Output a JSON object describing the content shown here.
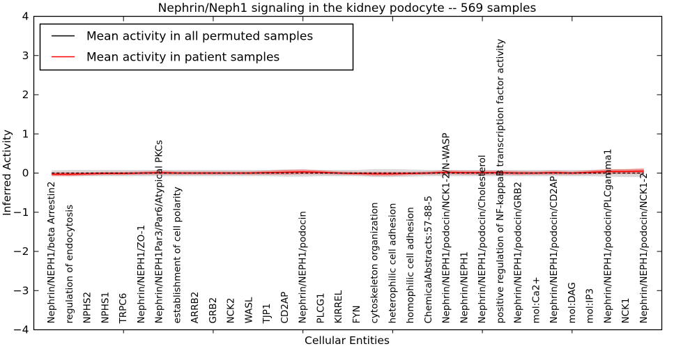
{
  "chart_data": {
    "type": "line",
    "title": "Nephrin/Neph1 signaling in the kidney podocyte -- 569 samples",
    "xlabel": "Cellular Entities",
    "ylabel": "Inferred Activity",
    "ylim": [
      -4,
      4
    ],
    "xlim": [
      0,
      35
    ],
    "yticks": [
      -4,
      -3,
      -2,
      -1,
      0,
      1,
      2,
      3,
      4
    ],
    "xticks_major": [
      5,
      10,
      15,
      20,
      25,
      30
    ],
    "grid": false,
    "legend_position": "upper left",
    "categories": [
      "Nephrin/NEPH1/beta Arrestin2",
      "regulation of endocytosis",
      "NPHS2",
      "NPHS1",
      "TRPC6",
      "Nephrin/NEPH1/ZO-1",
      "Nephrin/NEPH1Par3/Par6/Atypical PKCs",
      "establishment of cell polarity",
      "ARRB2",
      "GRB2",
      "NCK2",
      "WASL",
      "TJP1",
      "CD2AP",
      "Nephrin/NEPH1/podocin",
      "PLCG1",
      "KIRREL",
      "FYN",
      "cytoskeleton organization",
      "heterophilic cell adhesion",
      "homophilic cell adhesion",
      "ChemicalAbstracts:57-88-5",
      "Nephrin/NEPH1/podocin/NCK1-2/N-WASP",
      "Nephrin/NEPH1",
      "Nephrin/NEPH1/podocin/Cholesterol",
      "positive regulation of NF-kappaB transcription factor activity",
      "Nephrin/NEPH1/podocin/GRB2",
      "mol:Ca2+",
      "Nephrin/NEPH1/podocin/CD2AP",
      "mol:DAG",
      "mol:IP3",
      "Nephrin/NEPH1/podocin/PLCgamma1",
      "NCK1",
      "Nephrin/NEPH1/podocin/NCK1-2"
    ],
    "series": [
      {
        "name": "Mean activity in all permuted samples",
        "color": "#000000",
        "style": "dashed",
        "values": [
          0,
          0,
          0,
          0,
          0,
          0,
          0,
          0,
          0,
          0,
          0,
          0,
          0,
          0,
          0,
          0,
          0,
          0,
          0,
          0,
          0,
          0,
          0,
          0,
          0,
          0,
          0,
          0,
          0,
          0,
          0,
          0,
          0,
          0
        ]
      },
      {
        "name": "Mean activity in patient samples",
        "color": "#ff0000",
        "style": "solid",
        "values": [
          -0.03,
          -0.03,
          -0.02,
          -0.01,
          -0.01,
          0,
          0.01,
          0,
          0,
          0,
          0,
          0,
          0.01,
          0.02,
          0.03,
          0.02,
          0,
          -0.01,
          -0.02,
          -0.02,
          -0.01,
          0,
          0.02,
          0.01,
          0.01,
          0.01,
          0,
          0,
          0.01,
          0,
          0.02,
          0.04,
          0.04,
          0.05
        ]
      }
    ],
    "bands": [
      {
        "name": "permuted-samples-range",
        "color": "rgba(120,120,120,0.28)",
        "center_series": 0,
        "halfwidths": [
          0.07,
          0.08,
          0.08,
          0.08,
          0.08,
          0.08,
          0.08,
          0.08,
          0.08,
          0.08,
          0.08,
          0.08,
          0.08,
          0.09,
          0.09,
          0.08,
          0.08,
          0.08,
          0.1,
          0.1,
          0.09,
          0.08,
          0.08,
          0.08,
          0.08,
          0.08,
          0.08,
          0.08,
          0.08,
          0.08,
          0.08,
          0.09,
          0.1,
          0.1
        ]
      },
      {
        "name": "patient-samples-range",
        "color": "rgba(255,0,0,0.35)",
        "center_series": 1,
        "halfwidths": [
          0.05,
          0.05,
          0.04,
          0.04,
          0.04,
          0.04,
          0.05,
          0.04,
          0.04,
          0.04,
          0.04,
          0.04,
          0.05,
          0.06,
          0.06,
          0.05,
          0.04,
          0.04,
          0.05,
          0.05,
          0.04,
          0.04,
          0.05,
          0.05,
          0.05,
          0.05,
          0.05,
          0.04,
          0.05,
          0.04,
          0.05,
          0.06,
          0.06,
          0.07
        ]
      }
    ]
  }
}
